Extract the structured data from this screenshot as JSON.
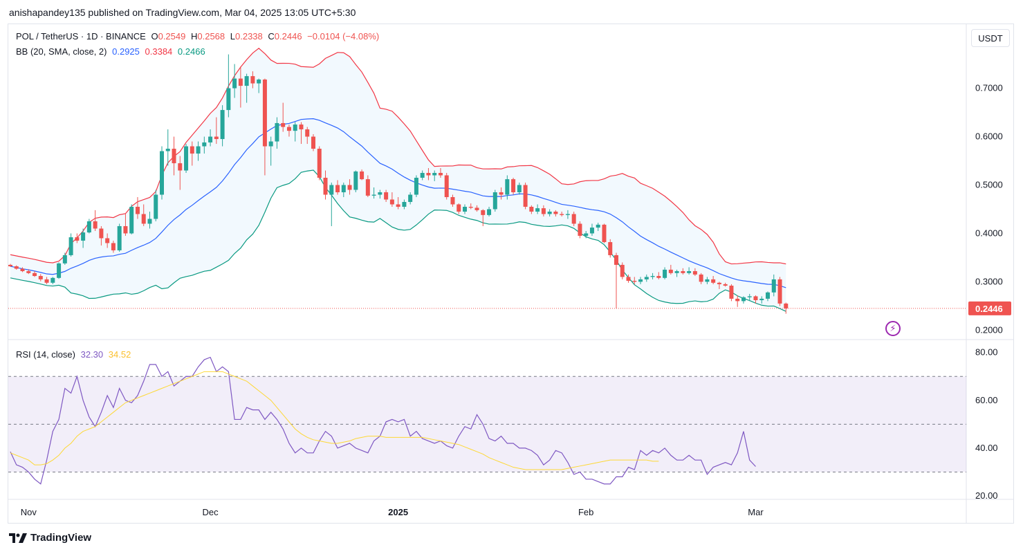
{
  "header": {
    "publisher": "anishapandey135 published on TradingView.com, Mar 04, 2025 13:05 UTC+5:30"
  },
  "symbol_line": {
    "symbol": "POL / TetherUS · 1D · BINANCE",
    "open_label": "O",
    "open": "0.2549",
    "high_label": "H",
    "high": "0.2568",
    "low_label": "L",
    "low": "0.2338",
    "close_label": "C",
    "close": "0.2446",
    "change": "−0.0104 (−4.08%)"
  },
  "bb_legend": {
    "label": "BB (20, SMA, close, 2)",
    "basis": "0.2925",
    "upper": "0.3384",
    "lower": "0.2466"
  },
  "rsi_legend": {
    "label": "RSI (14, close)",
    "rsi": "32.30",
    "ma": "34.52"
  },
  "currency_button": "USDT",
  "last_price_label": "0.2446",
  "footer": {
    "brand": "TradingView"
  },
  "colors": {
    "up": "#26a69a",
    "down": "#ef5350",
    "bb_basis": "#2962ff",
    "bb_upper": "#f23645",
    "bb_lower": "#089981",
    "bb_fill": "#2196f3",
    "rsi": "#7e57c2",
    "rsi_ma": "#fdd835",
    "rsi_band": "#7e57c2",
    "text": "#131722",
    "axis_text": "#131722"
  },
  "chart_data": [
    {
      "type": "candlestick",
      "title": "POL / TetherUS · 1D · BINANCE",
      "y_axis_ticks": [
        "0.7000",
        "0.6000",
        "0.5000",
        "0.4000",
        "0.3000",
        "0.2000"
      ],
      "ylim": [
        0.185,
        0.79
      ],
      "x_axis_ticks": [
        "Nov",
        "Dec",
        "2025",
        "Feb",
        "Mar"
      ],
      "x_tick_dates": [
        "2024-11-01",
        "2024-12-01",
        "2025-01-01",
        "2025-02-01",
        "2025-03-01"
      ],
      "first_date": "2024-10-29",
      "candles": [
        [
          0.335,
          0.337,
          0.331,
          0.332
        ],
        [
          0.332,
          0.334,
          0.325,
          0.327
        ],
        [
          0.327,
          0.33,
          0.32,
          0.322
        ],
        [
          0.322,
          0.326,
          0.316,
          0.318
        ],
        [
          0.318,
          0.322,
          0.31,
          0.312
        ],
        [
          0.312,
          0.316,
          0.301,
          0.305
        ],
        [
          0.305,
          0.31,
          0.295,
          0.298
        ],
        [
          0.298,
          0.31,
          0.295,
          0.308
        ],
        [
          0.308,
          0.34,
          0.306,
          0.338
        ],
        [
          0.338,
          0.36,
          0.335,
          0.355
        ],
        [
          0.355,
          0.4,
          0.352,
          0.392
        ],
        [
          0.392,
          0.4,
          0.38,
          0.385
        ],
        [
          0.385,
          0.41,
          0.37,
          0.402
        ],
        [
          0.402,
          0.43,
          0.4,
          0.425
        ],
        [
          0.425,
          0.448,
          0.405,
          0.41
        ],
        [
          0.41,
          0.415,
          0.375,
          0.39
        ],
        [
          0.39,
          0.4,
          0.37,
          0.38
        ],
        [
          0.38,
          0.385,
          0.36,
          0.365
        ],
        [
          0.365,
          0.42,
          0.362,
          0.415
        ],
        [
          0.415,
          0.44,
          0.395,
          0.4
        ],
        [
          0.4,
          0.46,
          0.398,
          0.455
        ],
        [
          0.455,
          0.475,
          0.43,
          0.44
        ],
        [
          0.44,
          0.46,
          0.415,
          0.42
        ],
        [
          0.42,
          0.445,
          0.41,
          0.43
        ],
        [
          0.43,
          0.49,
          0.425,
          0.48
        ],
        [
          0.48,
          0.58,
          0.47,
          0.57
        ],
        [
          0.57,
          0.615,
          0.54,
          0.575
        ],
        [
          0.575,
          0.6,
          0.52,
          0.545
        ],
        [
          0.545,
          0.56,
          0.49,
          0.53
        ],
        [
          0.53,
          0.585,
          0.525,
          0.58
        ],
        [
          0.58,
          0.59,
          0.54,
          0.565
        ],
        [
          0.565,
          0.59,
          0.55,
          0.58
        ],
        [
          0.58,
          0.6,
          0.565,
          0.588
        ],
        [
          0.588,
          0.615,
          0.58,
          0.6
        ],
        [
          0.6,
          0.64,
          0.585,
          0.595
        ],
        [
          0.595,
          0.665,
          0.58,
          0.655
        ],
        [
          0.655,
          0.77,
          0.64,
          0.7
        ],
        [
          0.7,
          0.75,
          0.68,
          0.72
        ],
        [
          0.72,
          0.745,
          0.66,
          0.705
        ],
        [
          0.705,
          0.73,
          0.67,
          0.725
        ],
        [
          0.725,
          0.735,
          0.7,
          0.71
        ],
        [
          0.71,
          0.72,
          0.69,
          0.718
        ],
        [
          0.718,
          0.72,
          0.52,
          0.58
        ],
        [
          0.58,
          0.6,
          0.54,
          0.59
        ],
        [
          0.59,
          0.64,
          0.575,
          0.628
        ],
        [
          0.628,
          0.67,
          0.61,
          0.62
        ],
        [
          0.62,
          0.625,
          0.6,
          0.612
        ],
        [
          0.612,
          0.63,
          0.59,
          0.625
        ],
        [
          0.625,
          0.63,
          0.585,
          0.615
        ],
        [
          0.615,
          0.62,
          0.585,
          0.6
        ],
        [
          0.6,
          0.605,
          0.57,
          0.575
        ],
        [
          0.575,
          0.58,
          0.51,
          0.515
        ],
        [
          0.515,
          0.53,
          0.47,
          0.48
        ],
        [
          0.48,
          0.505,
          0.415,
          0.5
        ],
        [
          0.5,
          0.51,
          0.48,
          0.485
        ],
        [
          0.485,
          0.505,
          0.475,
          0.5
        ],
        [
          0.5,
          0.512,
          0.48,
          0.49
        ],
        [
          0.49,
          0.53,
          0.485,
          0.528
        ],
        [
          0.528,
          0.532,
          0.51,
          0.512
        ],
        [
          0.512,
          0.52,
          0.475,
          0.478
        ],
        [
          0.478,
          0.495,
          0.472,
          0.48
        ],
        [
          0.48,
          0.49,
          0.472,
          0.485
        ],
        [
          0.485,
          0.49,
          0.465,
          0.47
        ],
        [
          0.47,
          0.485,
          0.455,
          0.46
        ],
        [
          0.46,
          0.475,
          0.45,
          0.455
        ],
        [
          0.455,
          0.47,
          0.45,
          0.465
        ],
        [
          0.465,
          0.485,
          0.46,
          0.48
        ],
        [
          0.48,
          0.52,
          0.475,
          0.515
        ],
        [
          0.515,
          0.53,
          0.51,
          0.525
        ],
        [
          0.525,
          0.535,
          0.51,
          0.52
        ],
        [
          0.52,
          0.53,
          0.508,
          0.525
        ],
        [
          0.525,
          0.535,
          0.515,
          0.52
        ],
        [
          0.52,
          0.525,
          0.47,
          0.475
        ],
        [
          0.475,
          0.48,
          0.455,
          0.46
        ],
        [
          0.46,
          0.462,
          0.44,
          0.445
        ],
        [
          0.445,
          0.46,
          0.44,
          0.455
        ],
        [
          0.455,
          0.462,
          0.45,
          0.453
        ],
        [
          0.453,
          0.458,
          0.445,
          0.448
        ],
        [
          0.448,
          0.45,
          0.415,
          0.438
        ],
        [
          0.438,
          0.455,
          0.435,
          0.45
        ],
        [
          0.45,
          0.49,
          0.445,
          0.485
        ],
        [
          0.485,
          0.495,
          0.47,
          0.48
        ],
        [
          0.48,
          0.52,
          0.47,
          0.512
        ],
        [
          0.512,
          0.515,
          0.48,
          0.485
        ],
        [
          0.485,
          0.505,
          0.48,
          0.5
        ],
        [
          0.5,
          0.505,
          0.45,
          0.455
        ],
        [
          0.455,
          0.458,
          0.44,
          0.445
        ],
        [
          0.445,
          0.46,
          0.44,
          0.452
        ],
        [
          0.452,
          0.458,
          0.435,
          0.44
        ],
        [
          0.44,
          0.45,
          0.435,
          0.445
        ],
        [
          0.445,
          0.448,
          0.435,
          0.44
        ],
        [
          0.44,
          0.445,
          0.435,
          0.438
        ],
        [
          0.438,
          0.448,
          0.43,
          0.44
        ],
        [
          0.44,
          0.445,
          0.415,
          0.42
        ],
        [
          0.42,
          0.425,
          0.39,
          0.395
        ],
        [
          0.395,
          0.405,
          0.39,
          0.4
        ],
        [
          0.4,
          0.42,
          0.395,
          0.412
        ],
        [
          0.412,
          0.422,
          0.405,
          0.418
        ],
        [
          0.418,
          0.42,
          0.38,
          0.382
        ],
        [
          0.382,
          0.388,
          0.35,
          0.355
        ],
        [
          0.355,
          0.36,
          0.245,
          0.335
        ],
        [
          0.335,
          0.34,
          0.305,
          0.31
        ],
        [
          0.31,
          0.315,
          0.298,
          0.302
        ],
        [
          0.302,
          0.31,
          0.295,
          0.3
        ],
        [
          0.3,
          0.31,
          0.295,
          0.305
        ],
        [
          0.305,
          0.315,
          0.3,
          0.31
        ],
        [
          0.31,
          0.318,
          0.305,
          0.312
        ],
        [
          0.312,
          0.32,
          0.305,
          0.308
        ],
        [
          0.308,
          0.33,
          0.305,
          0.325
        ],
        [
          0.325,
          0.335,
          0.315,
          0.318
        ],
        [
          0.318,
          0.325,
          0.31,
          0.322
        ],
        [
          0.322,
          0.328,
          0.315,
          0.318
        ],
        [
          0.318,
          0.33,
          0.315,
          0.322
        ],
        [
          0.322,
          0.328,
          0.312,
          0.315
        ],
        [
          0.315,
          0.318,
          0.295,
          0.3
        ],
        [
          0.3,
          0.31,
          0.295,
          0.305
        ],
        [
          0.305,
          0.312,
          0.295,
          0.298
        ],
        [
          0.298,
          0.3,
          0.285,
          0.295
        ],
        [
          0.295,
          0.298,
          0.29,
          0.292
        ],
        [
          0.292,
          0.295,
          0.26,
          0.265
        ],
        [
          0.265,
          0.272,
          0.248,
          0.26
        ],
        [
          0.26,
          0.27,
          0.255,
          0.268
        ],
        [
          0.268,
          0.275,
          0.26,
          0.27
        ],
        [
          0.27,
          0.272,
          0.255,
          0.262
        ],
        [
          0.262,
          0.27,
          0.255,
          0.265
        ],
        [
          0.265,
          0.28,
          0.26,
          0.278
        ],
        [
          0.278,
          0.315,
          0.27,
          0.305
        ],
        [
          0.305,
          0.31,
          0.25,
          0.255
        ],
        [
          0.255,
          0.257,
          0.234,
          0.245
        ]
      ]
    },
    {
      "type": "line",
      "title": "RSI (14, close)",
      "y_axis_ticks": [
        "80.00",
        "60.00",
        "40.00",
        "20.00"
      ],
      "ylim": [
        18,
        82
      ],
      "bands": [
        70,
        50,
        30
      ],
      "series": [
        {
          "name": "RSI",
          "values": [
            38.5,
            33,
            32,
            30,
            27,
            25,
            35,
            47,
            52,
            65,
            63,
            70,
            60,
            53,
            49,
            55,
            62,
            57,
            65,
            60,
            59,
            62,
            68,
            75,
            75,
            70,
            72,
            66,
            68,
            70,
            70,
            74,
            77,
            78,
            72,
            74,
            72,
            52,
            52,
            57,
            56,
            56,
            52,
            55,
            52,
            48,
            42,
            38,
            40,
            38,
            38,
            43,
            47,
            45,
            40,
            41,
            42,
            40,
            39,
            38,
            43,
            45,
            51,
            52,
            51,
            52,
            45,
            47,
            44,
            43,
            42,
            43,
            41,
            40,
            45,
            49,
            48,
            54,
            50,
            44,
            43,
            45,
            42,
            42,
            40,
            40,
            39,
            37,
            33,
            35,
            39,
            38,
            34,
            29,
            30,
            27,
            27,
            26,
            25,
            25,
            28,
            28,
            32,
            31,
            39,
            37,
            39,
            38,
            40,
            37,
            35,
            35,
            37,
            35,
            35,
            29,
            32,
            33,
            34,
            33,
            38,
            47,
            35,
            32.3
          ]
        },
        {
          "name": "RSI MA",
          "values": [
            38,
            37,
            36,
            35,
            33,
            33,
            33.5,
            35,
            37,
            40,
            42,
            45,
            47,
            48,
            49,
            51,
            53,
            55,
            57,
            59,
            60,
            61,
            62,
            63,
            64,
            65,
            66,
            67,
            68,
            69,
            70,
            71,
            72,
            72,
            72,
            72,
            71,
            70,
            69,
            68,
            66,
            64,
            62,
            60,
            57,
            54,
            51,
            48,
            46,
            44.5,
            43.5,
            43,
            42.5,
            42,
            42,
            42.5,
            43,
            44,
            44.5,
            45,
            45,
            45,
            44.5,
            44.5,
            44.5,
            44.5,
            44.5,
            44.5,
            44.5,
            44,
            43.5,
            43,
            42.5,
            42,
            41.5,
            40.5,
            39.5,
            38.5,
            37.5,
            36,
            35,
            34,
            33,
            32,
            31.5,
            31,
            31,
            31,
            31,
            31,
            31,
            31,
            31.5,
            32,
            32.5,
            33,
            33.5,
            34,
            34.5,
            35,
            35,
            35,
            35,
            35,
            35,
            35,
            34.5,
            34.52
          ]
        }
      ]
    }
  ]
}
